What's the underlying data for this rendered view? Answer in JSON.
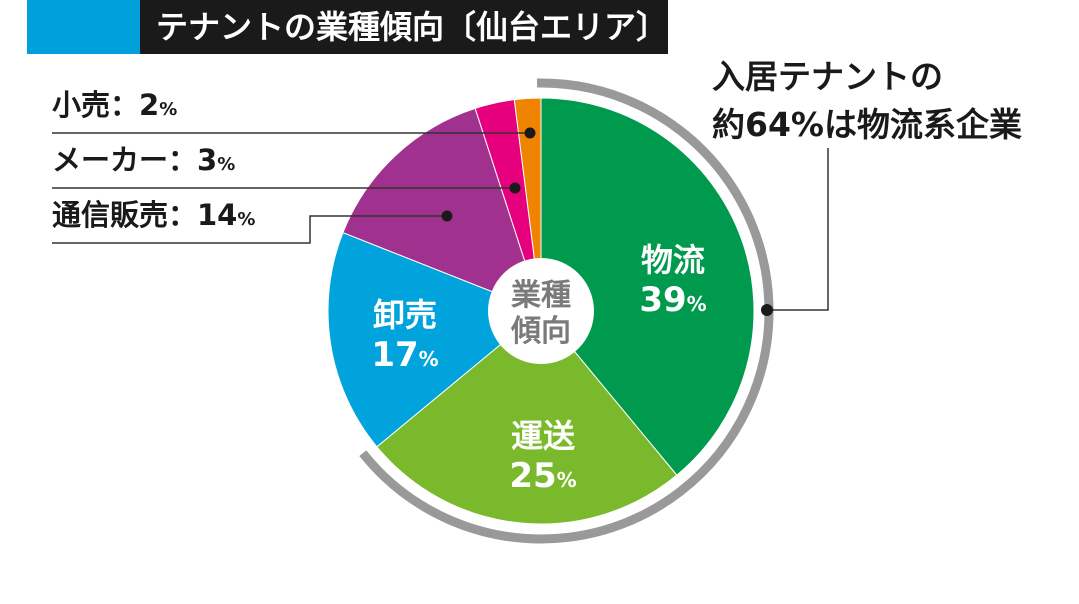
{
  "header": {
    "title": "テナントの業種傾向〔仙台エリア〕",
    "accent_color": "#00a0dc",
    "background_color": "#1a1a1a"
  },
  "callout": {
    "line1": "入居テナントの",
    "line2": "約64%は物流系企業"
  },
  "center_label": {
    "line1": "業種",
    "line2": "傾向"
  },
  "chart_data": {
    "type": "pie",
    "title": "テナントの業種傾向〔仙台エリア〕",
    "unit": "%",
    "start": "top",
    "direction": "clockwise",
    "slices": [
      {
        "name": "物流",
        "value": 39,
        "color": "#009a4e",
        "label_position": "inside"
      },
      {
        "name": "運送",
        "value": 25,
        "color": "#7ab92c",
        "label_position": "inside"
      },
      {
        "name": "卸売",
        "value": 17,
        "color": "#00a3dc",
        "label_position": "inside"
      },
      {
        "name": "通信販売",
        "value": 14,
        "color": "#a0318e",
        "label_position": "outside"
      },
      {
        "name": "メーカー",
        "value": 3,
        "color": "#e6007e",
        "label_position": "outside"
      },
      {
        "name": "小売",
        "value": 2,
        "color": "#f08300",
        "label_position": "outside"
      }
    ],
    "highlight": {
      "slices": [
        "物流",
        "運送"
      ],
      "total": 64,
      "color": "#999999"
    }
  }
}
